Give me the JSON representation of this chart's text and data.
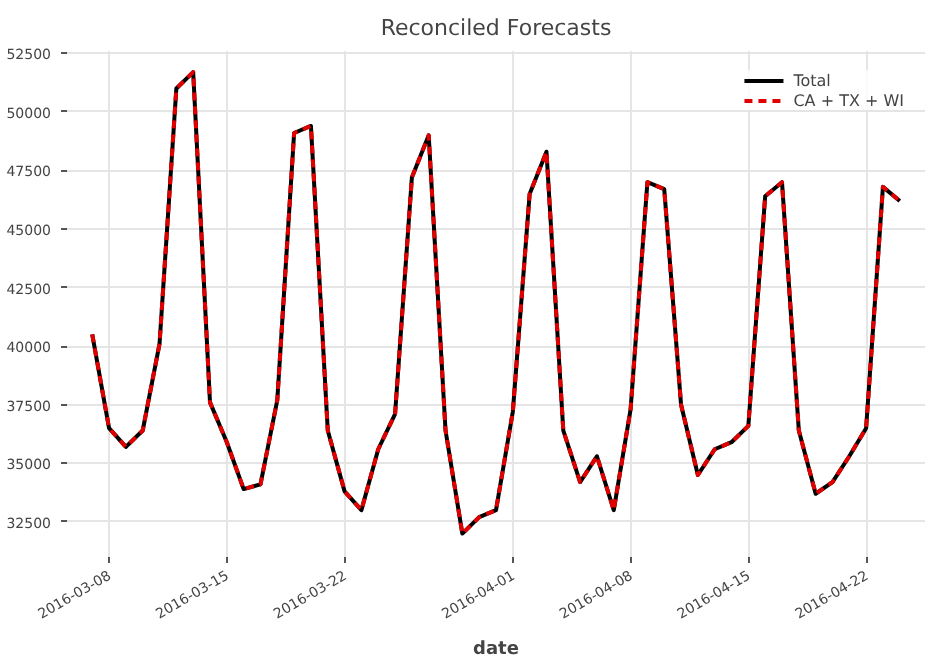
{
  "chart_data": {
    "type": "line",
    "title": "Reconciled Forecasts",
    "xlabel": "date",
    "x": [
      "2016-03-07",
      "2016-03-08",
      "2016-03-09",
      "2016-03-10",
      "2016-03-11",
      "2016-03-12",
      "2016-03-13",
      "2016-03-14",
      "2016-03-15",
      "2016-03-16",
      "2016-03-17",
      "2016-03-18",
      "2016-03-19",
      "2016-03-20",
      "2016-03-21",
      "2016-03-22",
      "2016-03-23",
      "2016-03-24",
      "2016-03-25",
      "2016-03-26",
      "2016-03-27",
      "2016-03-28",
      "2016-03-29",
      "2016-03-30",
      "2016-03-31",
      "2016-04-01",
      "2016-04-02",
      "2016-04-03",
      "2016-04-04",
      "2016-04-05",
      "2016-04-06",
      "2016-04-07",
      "2016-04-08",
      "2016-04-09",
      "2016-04-10",
      "2016-04-11",
      "2016-04-12",
      "2016-04-13",
      "2016-04-14",
      "2016-04-15",
      "2016-04-16",
      "2016-04-17",
      "2016-04-18",
      "2016-04-19",
      "2016-04-20",
      "2016-04-21",
      "2016-04-22",
      "2016-04-23",
      "2016-04-24"
    ],
    "series": [
      {
        "name": "Total",
        "color": "#000000",
        "line_style": "solid",
        "values": [
          40500,
          36500,
          35700,
          36400,
          40100,
          51000,
          51700,
          37600,
          35900,
          33900,
          34100,
          37700,
          49100,
          49400,
          36400,
          33800,
          33000,
          35600,
          37100,
          47200,
          49000,
          36400,
          32000,
          32700,
          33000,
          37200,
          46500,
          48300,
          36400,
          34200,
          35300,
          33000,
          37300,
          47000,
          46700,
          37500,
          34500,
          35600,
          35900,
          36600,
          46400,
          47000,
          36400,
          33700,
          34200,
          35300,
          36500,
          46800,
          46200
        ]
      },
      {
        "name": "CA + TX + WI",
        "color": "#e00000",
        "line_style": "dashed",
        "values": [
          40500,
          36500,
          35700,
          36400,
          40100,
          51000,
          51700,
          37600,
          35900,
          33900,
          34100,
          37700,
          49100,
          49400,
          36400,
          33800,
          33000,
          35600,
          37100,
          47200,
          49000,
          36400,
          32000,
          32700,
          33000,
          37200,
          46500,
          48300,
          36400,
          34200,
          35300,
          33000,
          37300,
          47000,
          46700,
          37500,
          34500,
          35600,
          35900,
          36600,
          46400,
          47000,
          36400,
          33700,
          34200,
          35300,
          36500,
          46800,
          46200
        ]
      }
    ],
    "xlim": [
      "2016-03-05T12:00",
      "2016-04-25T12:00"
    ],
    "xticks": [
      "2016-03-08",
      "2016-03-15",
      "2016-03-22",
      "2016-04-01",
      "2016-04-08",
      "2016-04-15",
      "2016-04-22"
    ],
    "ylim": [
      31000,
      52600
    ],
    "yticks": [
      32500,
      35000,
      37500,
      40000,
      42500,
      45000,
      47500,
      50000,
      52500
    ],
    "grid": true,
    "legend": "top right"
  }
}
